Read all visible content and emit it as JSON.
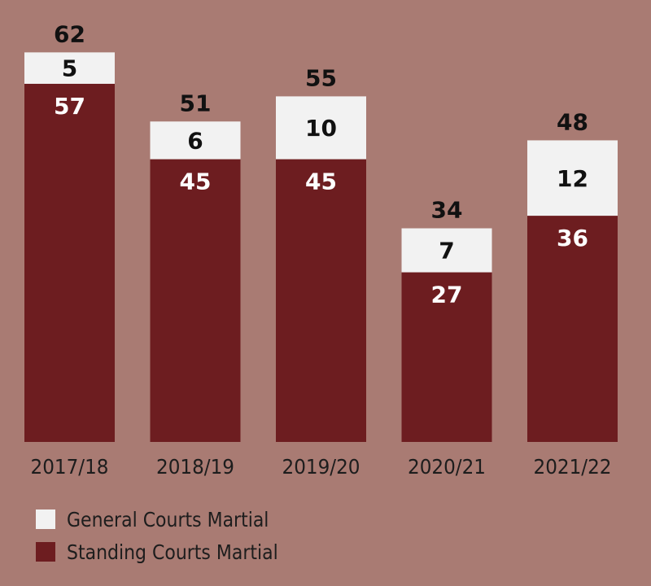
{
  "chart_data": {
    "type": "bar",
    "stacked": true,
    "categories": [
      "2017/18",
      "2018/19",
      "2019/20",
      "2020/21",
      "2021/22"
    ],
    "series": [
      {
        "name": "Standing Courts Martial",
        "values": [
          57,
          45,
          45,
          27,
          36
        ],
        "color": "#6d1d20"
      },
      {
        "name": "General Courts Martial",
        "values": [
          5,
          6,
          10,
          7,
          12
        ],
        "color": "#f2f2f2"
      }
    ],
    "totals": [
      62,
      51,
      55,
      34,
      48
    ],
    "legend_position": "bottom-left",
    "grid": false,
    "title": "",
    "xlabel": "",
    "ylabel": ""
  },
  "colors": {
    "background": "#a97b73",
    "standing": "#6d1d20",
    "general": "#f2f2f2",
    "label_dark": "#111111",
    "label_light": "#ffffff"
  }
}
